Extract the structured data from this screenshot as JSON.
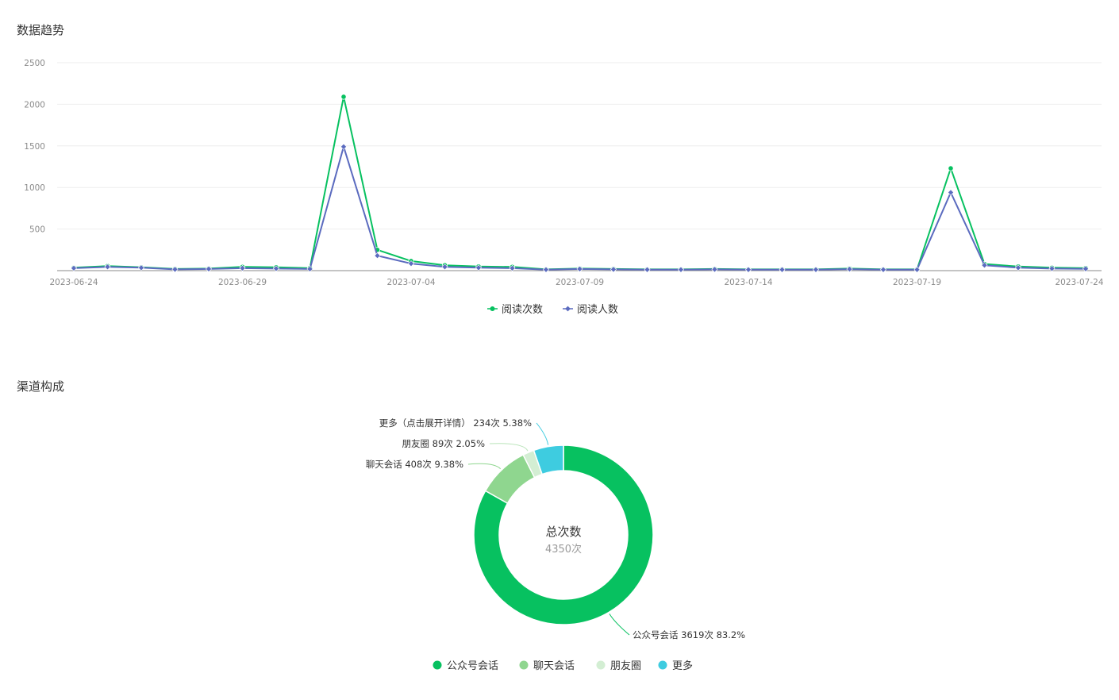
{
  "sections": {
    "trend_title": "数据趋势",
    "channel_title": "渠道构成"
  },
  "chart_data": [
    {
      "type": "line",
      "title": "数据趋势",
      "x": [
        "2023-06-24",
        "2023-06-25",
        "2023-06-26",
        "2023-06-27",
        "2023-06-28",
        "2023-06-29",
        "2023-06-30",
        "2023-07-01",
        "2023-07-02",
        "2023-07-03",
        "2023-07-04",
        "2023-07-05",
        "2023-07-06",
        "2023-07-07",
        "2023-07-08",
        "2023-07-09",
        "2023-07-10",
        "2023-07-11",
        "2023-07-12",
        "2023-07-13",
        "2023-07-14",
        "2023-07-15",
        "2023-07-16",
        "2023-07-17",
        "2023-07-18",
        "2023-07-19",
        "2023-07-20",
        "2023-07-21",
        "2023-07-22",
        "2023-07-23",
        "2023-07-24"
      ],
      "x_tick_labels": [
        "2023-06-24",
        "2023-06-29",
        "2023-07-04",
        "2023-07-09",
        "2023-07-14",
        "2023-07-19",
        "2023-07-24"
      ],
      "y_ticks": [
        500,
        1000,
        1500,
        2000,
        2500
      ],
      "ylim": [
        0,
        2500
      ],
      "grid": true,
      "legend_position": "bottom-center",
      "series": [
        {
          "name": "阅读次数",
          "color": "#07c160",
          "marker": "circle",
          "values": [
            35,
            55,
            40,
            20,
            25,
            45,
            40,
            30,
            2090,
            250,
            115,
            65,
            50,
            45,
            15,
            25,
            20,
            15,
            15,
            20,
            15,
            15,
            15,
            25,
            15,
            15,
            1230,
            80,
            50,
            35,
            30
          ]
        },
        {
          "name": "阅读人数",
          "color": "#5b6bbf",
          "marker": "diamond",
          "values": [
            30,
            45,
            35,
            15,
            20,
            30,
            25,
            20,
            1490,
            180,
            85,
            45,
            35,
            30,
            12,
            20,
            15,
            12,
            12,
            15,
            12,
            12,
            12,
            18,
            12,
            12,
            940,
            65,
            35,
            25,
            22
          ]
        }
      ]
    },
    {
      "type": "pie",
      "title": "渠道构成",
      "center_title": "总次数",
      "center_value": "4350次",
      "legend_position": "bottom-center",
      "slices": [
        {
          "name": "公众号会话",
          "label": "公众号会话 3619次 83.2%",
          "value": 3619,
          "percent": 83.2,
          "color": "#07c160"
        },
        {
          "name": "聊天会话",
          "label": "聊天会话 408次 9.38%",
          "value": 408,
          "percent": 9.38,
          "color": "#8fd68f"
        },
        {
          "name": "朋友圈",
          "label": "朋友圈 89次 2.05%",
          "value": 89,
          "percent": 2.05,
          "color": "#d3eed3"
        },
        {
          "name": "更多",
          "label": "更多（点击展开详情） 234次 5.38%",
          "value": 234,
          "percent": 5.38,
          "color": "#3ecce0"
        }
      ]
    }
  ]
}
